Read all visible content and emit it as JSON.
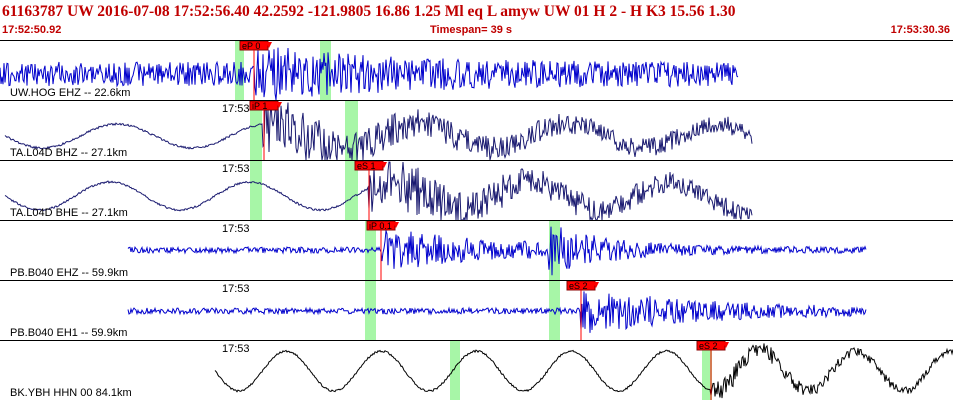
{
  "header": {
    "title": "61163787 UW 2016-07-08 17:52:56.40   42.2592 -121.9805  16.86  1.25 Ml  eq  L amyw     UW 01  H   2  - H K3   15.56  1.30",
    "start_time": "17:52:50.92",
    "timespan": "Timespan=  39 s",
    "end_time": "17:53:30.36"
  },
  "colors": {
    "header_text": "#c00000",
    "pick_red": "#ff0000",
    "green_band": "#98f598",
    "trace_blue": "#0000cc",
    "trace_navy": "#1a1a70",
    "trace_black": "#000000"
  },
  "panels": [
    {
      "label": "UW.HOG EHZ -- 22.6km",
      "time_label": "",
      "trace_color": "#0000cc",
      "pick": {
        "label": "eP 0"
      }
    },
    {
      "label": "TA.L04D BHZ -- 27.1km",
      "time_label": "17:53",
      "trace_color": "#1a1a70",
      "pick": {
        "label": "iP 1"
      }
    },
    {
      "label": "TA.L04D BHE -- 27.1km",
      "time_label": "17:53",
      "trace_color": "#1a1a70",
      "pick": {
        "label": "eS 1"
      }
    },
    {
      "label": "PB.B040 EHZ -- 59.9km",
      "time_label": "17:53",
      "trace_color": "#0000cc",
      "pick": {
        "label": "iP 0.1"
      }
    },
    {
      "label": "PB.B040 EH1 -- 59.9km",
      "time_label": "17:53",
      "trace_color": "#0000cc",
      "pick": {
        "label": "eS 2"
      }
    },
    {
      "label": "BK.YBH HHN 00 84.1km",
      "time_label": "17:53",
      "trace_color": "#000000",
      "pick": {
        "label": "eS 2"
      }
    }
  ]
}
